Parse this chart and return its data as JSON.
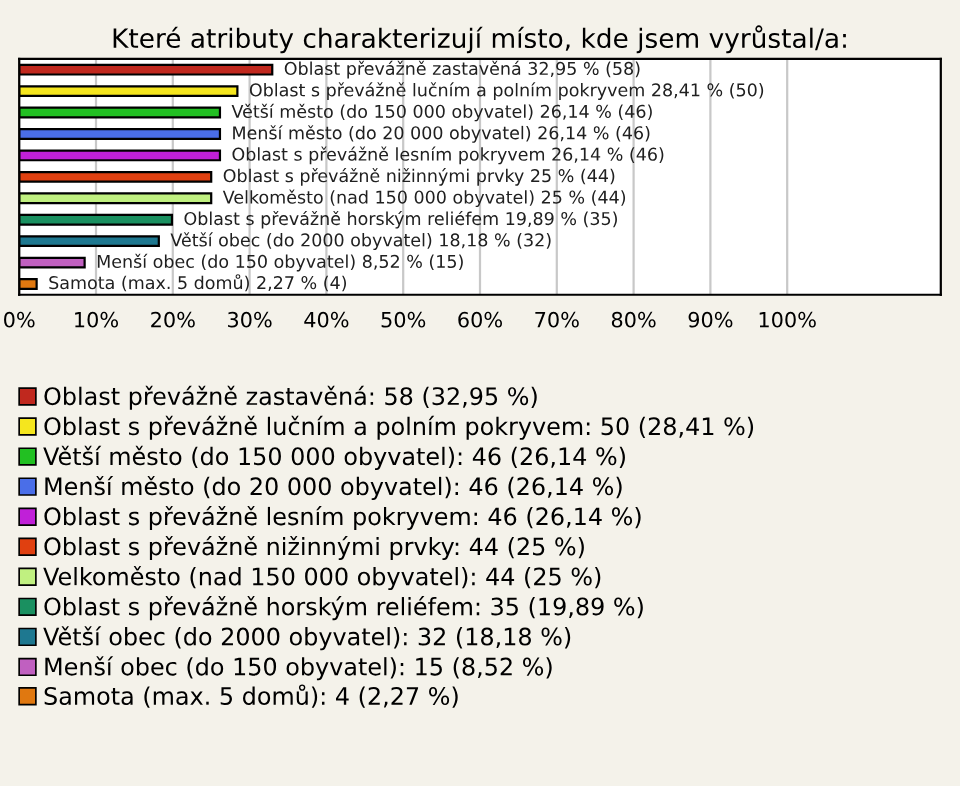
{
  "chart_data": {
    "type": "bar",
    "orientation": "horizontal",
    "title": "Které atributy charakterizují místo, kde jsem vyrůstal/a:",
    "categories": [
      null,
      null,
      null,
      null,
      null,
      null,
      null,
      null,
      null,
      null,
      null
    ],
    "series": [
      {
        "name": "Oblast převážně zastavěná: 58 (32,95 %)",
        "color": "#c0281e",
        "values": [
          32.95,
          null,
          null,
          null,
          null,
          null,
          null,
          null,
          null,
          null,
          null
        ],
        "value_labels": [
          "Oblast převážně zastavěná 32,95 % (58)",
          null,
          null,
          null,
          null,
          null,
          null,
          null,
          null,
          null,
          null
        ]
      },
      {
        "name": "Oblast s převážně lučním a polním pokryvem: 50 (28,41 %)",
        "color": "#f5e61e",
        "values": [
          null,
          28.41,
          null,
          null,
          null,
          null,
          null,
          null,
          null,
          null,
          null
        ],
        "value_labels": [
          null,
          "Oblast s převážně lučním a polním pokryvem 28,41 % (50)",
          null,
          null,
          null,
          null,
          null,
          null,
          null,
          null,
          null
        ]
      },
      {
        "name": "Větší město (do 150 000 obyvatel): 46 (26,14 %)",
        "color": "#22c022",
        "values": [
          null,
          null,
          26.14,
          null,
          null,
          null,
          null,
          null,
          null,
          null,
          null
        ],
        "value_labels": [
          null,
          null,
          "Větší město (do 150 000 obyvatel) 26,14 % (46)",
          null,
          null,
          null,
          null,
          null,
          null,
          null,
          null
        ]
      },
      {
        "name": "Menší město (do 20 000 obyvatel): 46 (26,14 %)",
        "color": "#4a6ee8",
        "values": [
          null,
          null,
          null,
          26.14,
          null,
          null,
          null,
          null,
          null,
          null,
          null
        ],
        "value_labels": [
          null,
          null,
          null,
          "Menší město (do 20 000 obyvatel) 26,14 % (46)",
          null,
          null,
          null,
          null,
          null,
          null,
          null
        ]
      },
      {
        "name": "Oblast s převážně lesním pokryvem: 46 (26,14 %)",
        "color": "#c020d8",
        "values": [
          null,
          null,
          null,
          null,
          26.14,
          null,
          null,
          null,
          null,
          null,
          null
        ],
        "value_labels": [
          null,
          null,
          null,
          null,
          "Oblast s převážně lesním pokryvem 26,14 % (46)",
          null,
          null,
          null,
          null,
          null,
          null
        ]
      },
      {
        "name": "Oblast s převážně nižinnými prvky: 44 (25 %)",
        "color": "#e04010",
        "values": [
          null,
          null,
          null,
          null,
          null,
          25,
          null,
          null,
          null,
          null,
          null
        ],
        "value_labels": [
          null,
          null,
          null,
          null,
          null,
          "Oblast s převážně nižinnými prvky 25 % (44)",
          null,
          null,
          null,
          null,
          null
        ]
      },
      {
        "name": "Velkoměsto (nad 150 000 obyvatel): 44 (25 %)",
        "color": "#c0f080",
        "values": [
          null,
          null,
          null,
          null,
          null,
          null,
          25,
          null,
          null,
          null,
          null
        ],
        "value_labels": [
          null,
          null,
          null,
          null,
          null,
          null,
          "Velkoměsto (nad 150 000 obyvatel) 25 % (44)",
          null,
          null,
          null,
          null
        ]
      },
      {
        "name": "Oblast s převážně horským reliéfem: 35 (19,89 %)",
        "color": "#1a9060",
        "values": [
          null,
          null,
          null,
          null,
          null,
          null,
          null,
          19.89,
          null,
          null,
          null
        ],
        "value_labels": [
          null,
          null,
          null,
          null,
          null,
          null,
          null,
          "Oblast s převážně horským reliéfem 19,89 % (35)",
          null,
          null,
          null
        ]
      },
      {
        "name": "Větší obec (do 2000 obyvatel): 32 (18,18 %)",
        "color": "#1e7890",
        "values": [
          null,
          null,
          null,
          null,
          null,
          null,
          null,
          null,
          18.18,
          null,
          null
        ],
        "value_labels": [
          null,
          null,
          null,
          null,
          null,
          null,
          null,
          null,
          "Větší obec (do 2000 obyvatel) 18,18 % (32)",
          null,
          null
        ]
      },
      {
        "name": "Menší obec (do 150 obyvatel): 15 (8,52 %)",
        "color": "#c060c0",
        "values": [
          null,
          null,
          null,
          null,
          null,
          null,
          null,
          null,
          null,
          8.52,
          null
        ],
        "value_labels": [
          null,
          null,
          null,
          null,
          null,
          null,
          null,
          null,
          null,
          "Menší obec (do 150 obyvatel) 8,52 % (15)",
          null
        ]
      },
      {
        "name": "Samota (max. 5 domů): 4 (2,27 %)",
        "color": "#e07810",
        "values": [
          null,
          null,
          null,
          null,
          null,
          null,
          null,
          null,
          null,
          null,
          2.27
        ],
        "value_labels": [
          null,
          null,
          null,
          null,
          null,
          null,
          null,
          null,
          null,
          null,
          "Samota (max. 5 domů) 2,27 % (4)"
        ]
      }
    ],
    "xlim": [
      0,
      120
    ],
    "xticks": [
      {
        "value": 0,
        "label": "0%"
      },
      {
        "value": 10,
        "label": "10%"
      },
      {
        "value": 20,
        "label": "20%"
      },
      {
        "value": 30,
        "label": "30%"
      },
      {
        "value": 40,
        "label": "40%"
      },
      {
        "value": 50,
        "label": "50%"
      },
      {
        "value": 60,
        "label": "60%"
      },
      {
        "value": 70,
        "label": "70%"
      },
      {
        "value": 80,
        "label": "80%"
      },
      {
        "value": 90,
        "label": "90%"
      },
      {
        "value": 100,
        "label": "100%"
      }
    ],
    "grid": "x",
    "legend": "bottom",
    "tick_labels": "x"
  }
}
